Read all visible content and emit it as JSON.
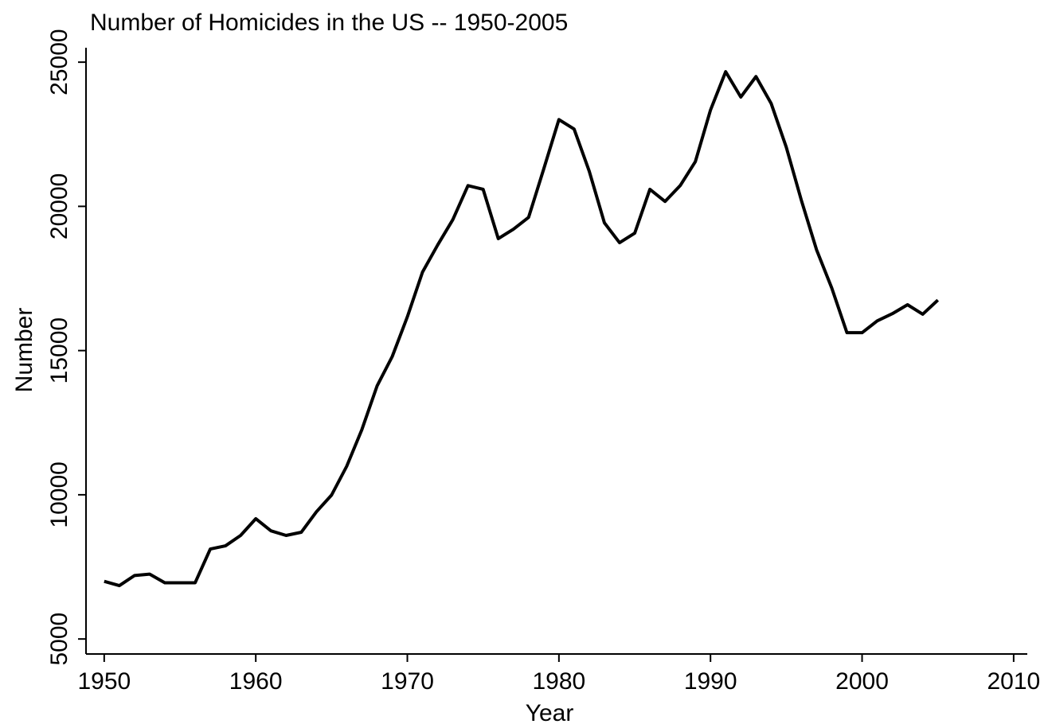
{
  "chart_data": {
    "type": "line",
    "title": "Number of Homicides in the US -- 1950-2005",
    "x_label": "Year",
    "y_label": "Number",
    "x": [
      1950,
      1951,
      1952,
      1953,
      1954,
      1955,
      1956,
      1957,
      1958,
      1959,
      1960,
      1961,
      1962,
      1963,
      1964,
      1965,
      1966,
      1967,
      1968,
      1969,
      1970,
      1971,
      1972,
      1973,
      1974,
      1975,
      1976,
      1977,
      1978,
      1979,
      1980,
      1981,
      1982,
      1983,
      1984,
      1985,
      1986,
      1987,
      1988,
      1989,
      1990,
      1991,
      1992,
      1993,
      1994,
      1995,
      1996,
      1997,
      1998,
      1999,
      2000,
      2001,
      2002,
      2003,
      2004,
      2005
    ],
    "series": [
      {
        "name": "Number",
        "color": "#000000",
        "values": [
          7000,
          6850,
          7200,
          7250,
          6950,
          6950,
          6950,
          8120,
          8230,
          8590,
          9170,
          8750,
          8590,
          8700,
          9410,
          9990,
          10990,
          12260,
          13770,
          14790,
          16170,
          17720,
          18660,
          19540,
          20720,
          20590,
          18880,
          19210,
          19620,
          21300,
          23010,
          22680,
          21220,
          19430,
          18740,
          19070,
          20590,
          20170,
          20720,
          21550,
          23340,
          24670,
          23790,
          24500,
          23570,
          22050,
          20200,
          18490,
          17170,
          15620,
          15620,
          16030,
          16280,
          16590,
          16260,
          16750
        ]
      }
    ],
    "xlim": [
      1948.8,
      2010.9
    ],
    "xticks": [
      1950,
      1960,
      1970,
      1980,
      1990,
      2000,
      2010
    ],
    "ylim": [
      4480,
      25500
    ],
    "yticks": [
      5000,
      10000,
      15000,
      20000,
      25000
    ],
    "grid": false
  }
}
